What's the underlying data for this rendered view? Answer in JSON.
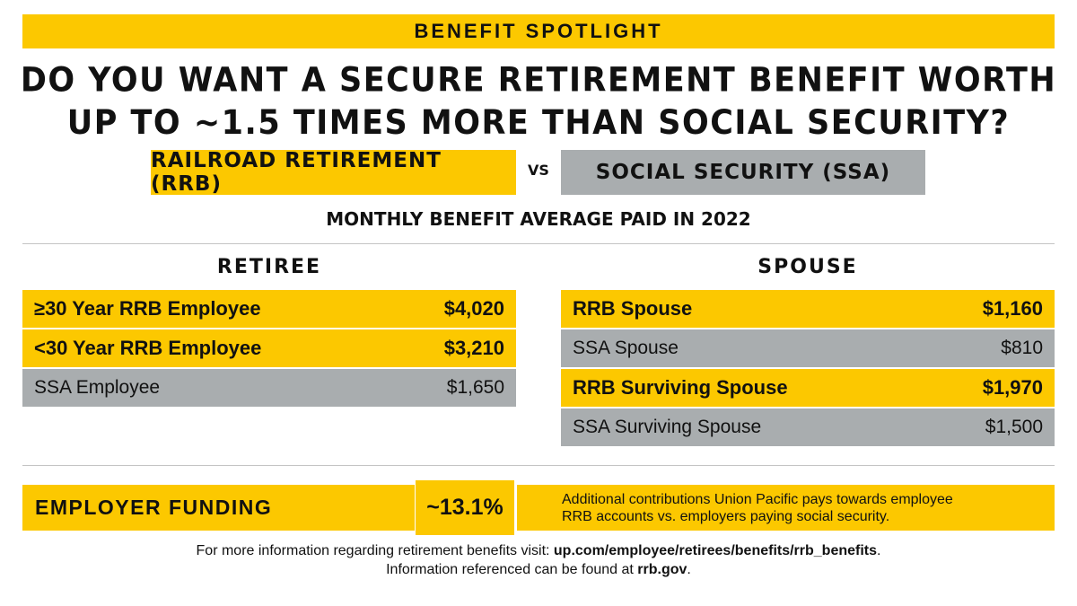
{
  "banner": "BENEFIT SPOTLIGHT",
  "headline": {
    "line1": "DO YOU WANT A SECURE RETIREMENT BENEFIT WORTH",
    "line2": "UP TO ~1.5 TIMES MORE THAN SOCIAL SECURITY?"
  },
  "comparison": {
    "left": "RAILROAD RETIREMENT (RRB)",
    "vs": "VS",
    "right": "SOCIAL SECURITY (SSA)"
  },
  "subtitle": "MONTHLY BENEFIT AVERAGE PAID IN 2022",
  "retiree": {
    "title": "RETIREE",
    "rows": [
      {
        "label": "≥30 Year RRB Employee",
        "value": "$4,020"
      },
      {
        "label": "<30 Year RRB Employee",
        "value": "$3,210"
      },
      {
        "label": "SSA Employee",
        "value": "$1,650"
      }
    ]
  },
  "spouse": {
    "title": "SPOUSE",
    "rows": [
      {
        "label": "RRB Spouse",
        "value": "$1,160"
      },
      {
        "label": "SSA Spouse",
        "value": "$810"
      },
      {
        "label": "RRB Surviving Spouse",
        "value": "$1,970"
      },
      {
        "label": "SSA Surviving Spouse",
        "value": "$1,500"
      }
    ]
  },
  "employer_funding": {
    "label": "EMPLOYER FUNDING",
    "value": "~13.1%",
    "desc_line1": "Additional contributions Union Pacific pays towards employee",
    "desc_line2": "RRB accounts vs. employers paying social security."
  },
  "footer": {
    "line1_prefix": "For more information regarding retirement benefits visit: ",
    "line1_link": "up.com/employee/retirees/benefits/rrb_benefits",
    "line1_suffix": ".",
    "line2_prefix": "Information referenced can be found at ",
    "line2_link": "rrb.gov",
    "line2_suffix": "."
  },
  "colors": {
    "accent_yellow": "#fcc800",
    "neutral_gray": "#a9adaf"
  }
}
